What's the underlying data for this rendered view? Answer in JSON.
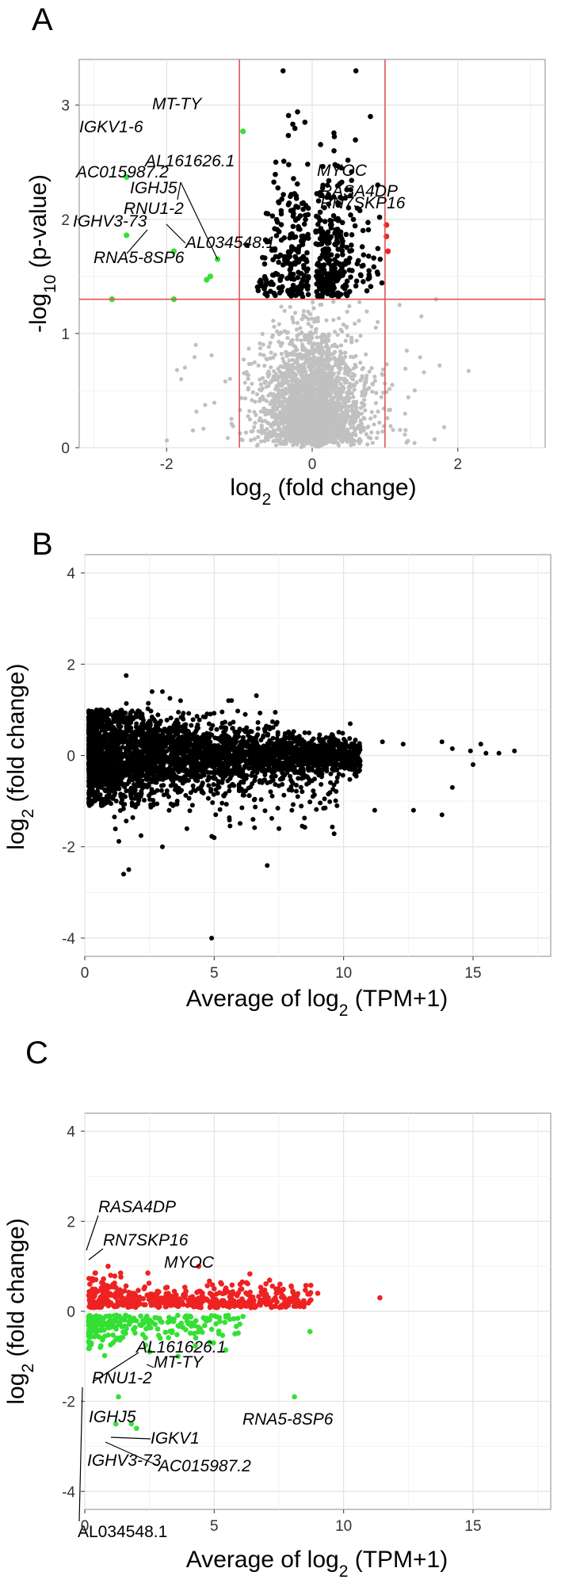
{
  "chart_data": [
    {
      "panel": "A",
      "type": "scatter",
      "xlabel": "log2 (fold change)",
      "ylabel": "-log10 (p-value)",
      "xlim": [
        -3.2,
        3.2
      ],
      "ylim": [
        0,
        3.4
      ],
      "xticks": [
        "-2",
        "0",
        "2"
      ],
      "yticks": [
        "0",
        "1",
        "2",
        "3"
      ],
      "grid": true,
      "thresholds": {
        "x": [
          -1,
          1
        ],
        "y": 1.3,
        "color": "#e05555"
      },
      "colors": {
        "background_points": "#c0c0c0",
        "significant": "#000000",
        "down": "#35e035",
        "up": "#ee2222"
      },
      "series": [
        {
          "name": "up",
          "color": "#ee2222",
          "points": [
            [
              1.02,
              1.95
            ],
            [
              1.02,
              1.85
            ],
            [
              1.04,
              1.72
            ]
          ]
        },
        {
          "name": "down",
          "color": "#35e035",
          "points": [
            [
              -0.95,
              2.77
            ],
            [
              -2.55,
              2.37
            ],
            [
              -2.55,
              1.86
            ],
            [
              -1.9,
              1.72
            ],
            [
              -1.3,
              1.65
            ],
            [
              -1.4,
              1.5
            ],
            [
              -1.45,
              1.47
            ],
            [
              -2.75,
              1.3
            ],
            [
              -1.9,
              1.3
            ]
          ]
        }
      ],
      "sig_points": [
        [
          -0.4,
          3.3
        ],
        [
          0.6,
          3.3
        ],
        [
          0.8,
          2.9
        ],
        [
          -0.1,
          2.85
        ],
        [
          0.3,
          2.6
        ],
        [
          0.4,
          2.45
        ],
        [
          -0.5,
          2.5
        ],
        [
          0.9,
          2.3
        ],
        [
          -0.3,
          2.2
        ],
        [
          0.5,
          2.1
        ]
      ],
      "annotations": [
        {
          "label": "MT-TY",
          "x": -0.95,
          "y": 2.77
        },
        {
          "label": "IGKV1-6",
          "x": -2.55,
          "y": 2.37
        },
        {
          "label": "AL161626.1",
          "x": -1.3,
          "y": 1.65
        },
        {
          "label": "AC015987.2",
          "x": -2.55,
          "y": 1.86
        },
        {
          "label": "IGHJ5",
          "x": -1.9,
          "y": 1.72
        },
        {
          "label": "RNU1-2",
          "x": -1.4,
          "y": 1.5
        },
        {
          "label": "IGHV3-73",
          "x": -2.75,
          "y": 1.3
        },
        {
          "label": "AL034548.1",
          "x": -1.45,
          "y": 1.47
        },
        {
          "label": "RNA5-8SP6",
          "x": -1.9,
          "y": 1.3
        },
        {
          "label": "MYOC",
          "x": 1.02,
          "y": 1.95
        },
        {
          "label": "RASA4DP",
          "x": 1.02,
          "y": 1.85
        },
        {
          "label": "RN7SKP16",
          "x": 1.04,
          "y": 1.72
        }
      ]
    },
    {
      "panel": "B",
      "type": "scatter",
      "xlabel": "Average of log2 (TPM+1)",
      "ylabel": "log2 (fold change)",
      "xlim": [
        0,
        18
      ],
      "ylim": [
        -4.4,
        4.4
      ],
      "xticks": [
        "0",
        "5",
        "10",
        "15"
      ],
      "yticks": [
        "-4",
        "-2",
        "0",
        "2",
        "4"
      ],
      "grid": true,
      "colors": {
        "points": "#000000"
      },
      "points": [
        [
          1.6,
          1.75
        ],
        [
          2.6,
          1.4
        ],
        [
          3.0,
          1.4
        ],
        [
          3.7,
          1.2
        ],
        [
          6.2,
          0.9
        ],
        [
          7.0,
          0.6
        ],
        [
          8.5,
          0.5
        ],
        [
          9.6,
          0.4
        ],
        [
          11.5,
          0.3
        ],
        [
          12.3,
          0.25
        ],
        [
          13.8,
          0.3
        ],
        [
          14.2,
          0.15
        ],
        [
          14.9,
          0.1
        ],
        [
          15.3,
          0.25
        ],
        [
          15.5,
          0.05
        ],
        [
          16.0,
          0.05
        ],
        [
          16.6,
          0.1
        ],
        [
          15.0,
          -0.2
        ],
        [
          14.2,
          -0.7
        ],
        [
          13.8,
          -1.3
        ],
        [
          12.7,
          -1.2
        ],
        [
          11.2,
          -1.2
        ],
        [
          8.0,
          -1.2
        ],
        [
          6.5,
          -1.4
        ],
        [
          5.0,
          -1.8
        ],
        [
          3.0,
          -2.0
        ],
        [
          1.5,
          -2.6
        ],
        [
          1.7,
          -2.5
        ],
        [
          4.9,
          -4.0
        ]
      ]
    },
    {
      "panel": "C",
      "type": "scatter",
      "xlabel": "Average of log2 (TPM+1)",
      "ylabel": "log2 (fold change)",
      "xlim": [
        0,
        18
      ],
      "ylim": [
        -4.4,
        4.4
      ],
      "xticks": [
        "0",
        "5",
        "10",
        "15"
      ],
      "yticks": [
        "-4",
        "-2",
        "0",
        "2",
        "4"
      ],
      "grid": true,
      "colors": {
        "up": "#ee2222",
        "down": "#35e035"
      },
      "up_points": [
        [
          0.9,
          1.0
        ],
        [
          1.0,
          0.8
        ],
        [
          4.4,
          1.0
        ],
        [
          6.0,
          0.6
        ],
        [
          7.4,
          0.4
        ],
        [
          8.2,
          0.35
        ],
        [
          11.4,
          0.3
        ],
        [
          9.0,
          0.4
        ],
        [
          5.0,
          0.5
        ]
      ],
      "down_points": [
        [
          0.6,
          -0.8
        ],
        [
          2.5,
          -0.9
        ],
        [
          3.6,
          -1.0
        ],
        [
          8.1,
          -1.9
        ],
        [
          8.7,
          -0.45
        ],
        [
          5.8,
          -0.5
        ],
        [
          4.9,
          -0.4
        ],
        [
          1.3,
          -1.9
        ],
        [
          1.8,
          -2.5
        ],
        [
          1.2,
          -2.5
        ],
        [
          2.0,
          -2.6
        ]
      ],
      "annotations": [
        {
          "label": "RASA4DP",
          "x": 0.9,
          "y": 1.0,
          "up": true
        },
        {
          "label": "RN7SKP16",
          "x": 1.0,
          "y": 0.8,
          "up": true
        },
        {
          "label": "MYOC",
          "x": 4.4,
          "y": 1.0,
          "up": true
        },
        {
          "label": "AL161626.1",
          "x": 2.5,
          "y": -0.9
        },
        {
          "label": "MT-TY",
          "x": 3.6,
          "y": -1.0
        },
        {
          "label": "RNU1-2",
          "x": 1.1,
          "y": -1.35
        },
        {
          "label": "RNA5-8SP6",
          "x": 8.1,
          "y": -1.9
        },
        {
          "label": "IGHJ5",
          "x": 1.3,
          "y": -1.9
        },
        {
          "label": "IGKV1",
          "x": 1.8,
          "y": -2.5
        },
        {
          "label": "IGHV3-73",
          "x": 1.2,
          "y": -2.5
        },
        {
          "label": "AC015987.2",
          "x": 2.0,
          "y": -2.6
        },
        {
          "label": "AL034548.1",
          "x": 0.6,
          "y": -1.45
        }
      ]
    }
  ]
}
